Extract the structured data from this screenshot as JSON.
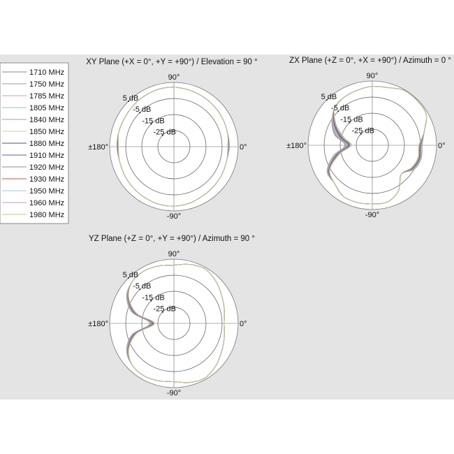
{
  "chart_data": {
    "type": "polar-line",
    "radial_unit": "dB",
    "radial_range": [
      -35,
      5
    ],
    "ring_labels": [
      "5 dB",
      "-5 dB",
      "-15 dB",
      "-25 dB"
    ],
    "ring_values": [
      5,
      -5,
      -15,
      -25
    ],
    "angle_labels": {
      "top": "90°",
      "left": "±180°",
      "right": "0°",
      "bottom": "-90°"
    },
    "legend": {
      "placement": "left",
      "entries": [
        {
          "name": "1710 MHz",
          "color": "#7b86b8"
        },
        {
          "name": "1750 MHz",
          "color": "#9a9a9a"
        },
        {
          "name": "1785 MHz",
          "color": "#e09aa4"
        },
        {
          "name": "1805 MHz",
          "color": "#86c4de"
        },
        {
          "name": "1840 MHz",
          "color": "#c08cb0"
        },
        {
          "name": "1850 MHz",
          "color": "#d6cc98"
        },
        {
          "name": "1880 MHz",
          "color": "#555555"
        },
        {
          "name": "1910 MHz",
          "color": "#5e5ea0"
        },
        {
          "name": "1920 MHz",
          "color": "#7e947e"
        },
        {
          "name": "1930 MHz",
          "color": "#b05858"
        },
        {
          "name": "1950 MHz",
          "color": "#9cc6d8"
        },
        {
          "name": "1960 MHz",
          "color": "#bc9cc6"
        },
        {
          "name": "1980 MHz",
          "color": "#c4c488"
        }
      ]
    },
    "angles_deg": [
      0,
      15,
      30,
      45,
      60,
      75,
      90,
      105,
      120,
      135,
      150,
      165,
      180,
      195,
      210,
      225,
      240,
      255,
      270,
      285,
      300,
      315,
      330,
      345
    ],
    "plots": [
      {
        "title": "XY Plane (+X = 0°, +Y = +90°) / Elevation = 90 °",
        "series": [
          [
            -0.5,
            -0.5,
            0,
            0.5,
            1,
            1.5,
            2,
            2,
            1.5,
            1,
            0.5,
            0.5,
            0.5,
            0,
            0.5,
            1,
            1.5,
            2,
            2,
            1.5,
            0.5,
            0,
            -0.5,
            -1
          ],
          [
            -0.6,
            -0.5,
            0,
            0.5,
            1,
            1.5,
            2,
            2,
            1.5,
            1,
            0.5,
            0.5,
            0.4,
            0,
            0.5,
            1,
            1.5,
            2,
            2,
            1.5,
            0.5,
            0,
            -0.5,
            -1
          ],
          [
            -0.7,
            -0.5,
            0,
            0.5,
            1,
            1.5,
            2,
            2,
            1.5,
            1,
            0.5,
            0.5,
            0.3,
            0,
            0.5,
            1,
            1.5,
            2,
            2,
            1.5,
            0.5,
            0,
            -0.5,
            -1
          ],
          [
            -0.8,
            -0.5,
            0,
            0.5,
            1,
            1.5,
            2,
            2,
            1.5,
            1,
            0.5,
            0.5,
            0.2,
            0,
            0.5,
            1,
            1.5,
            2,
            2,
            1.5,
            0.5,
            0,
            -0.5,
            -1
          ],
          [
            -0.8,
            -0.5,
            0,
            0.5,
            1,
            1.5,
            2,
            2,
            1.5,
            1,
            0.5,
            0.5,
            0.2,
            0,
            0.5,
            1,
            1.5,
            2,
            2,
            1.5,
            0.5,
            0,
            -0.5,
            -1
          ],
          [
            -0.9,
            -0.5,
            0,
            0.5,
            1,
            1.5,
            2,
            2,
            1.5,
            1,
            0.5,
            0.5,
            0.1,
            0,
            0.5,
            1,
            1.5,
            2,
            2,
            1.5,
            0.5,
            0,
            -0.5,
            -1
          ],
          [
            -1,
            -0.5,
            0,
            0.5,
            1,
            1.5,
            2,
            2,
            1.5,
            1,
            0.5,
            0.5,
            0,
            0,
            0.5,
            1,
            1.5,
            2,
            2,
            1.5,
            0.5,
            0,
            -0.5,
            -1
          ],
          [
            -1.1,
            -0.5,
            0,
            0.5,
            1,
            1.5,
            2,
            2,
            1.5,
            1,
            0.5,
            0.5,
            -0.1,
            0,
            0.5,
            1,
            1.5,
            2,
            2,
            1.5,
            0.5,
            0,
            -0.5,
            -1
          ],
          [
            -1.2,
            -0.5,
            0,
            0.5,
            1,
            1.5,
            2,
            2,
            1.5,
            1,
            0.5,
            0.5,
            -0.2,
            0,
            0.5,
            1,
            1.5,
            2,
            2,
            1.5,
            0.5,
            0,
            -0.5,
            -1
          ],
          [
            -1.3,
            -0.5,
            0,
            0.5,
            1,
            1.5,
            2,
            2,
            1.5,
            1,
            0.5,
            0.5,
            -0.3,
            0,
            0.5,
            1,
            1.5,
            2,
            2,
            1.5,
            0.5,
            0,
            -0.5,
            -1
          ],
          [
            -1.3,
            -0.5,
            0,
            0.5,
            1,
            1.5,
            2,
            2,
            1.5,
            1,
            0.5,
            0.5,
            -0.3,
            0,
            0.5,
            1,
            1.5,
            2,
            2,
            1.5,
            0.5,
            0,
            -0.5,
            -1
          ],
          [
            -1.4,
            -0.5,
            0,
            0.5,
            1,
            1.5,
            2,
            2,
            1.5,
            1,
            0.5,
            0.5,
            -0.4,
            0,
            0.5,
            1,
            1.5,
            2,
            2,
            1.5,
            0.5,
            0,
            -0.5,
            -1
          ],
          [
            -1.5,
            -0.5,
            0,
            0.5,
            1,
            1.5,
            2,
            2,
            1.5,
            1,
            0.5,
            0.5,
            -0.5,
            0,
            0.5,
            1,
            1.5,
            2,
            2,
            1.5,
            0.5,
            0,
            -0.5,
            -1
          ]
        ]
      },
      {
        "title": "ZX Plane (+Z = 0°, +X = +90°) / Azimuth = 0 °",
        "series": [
          [
            -4,
            -1.5,
            3.7,
            4.4,
            4.5,
            2.2,
            1.7,
            0.5,
            -0.3,
            -2,
            -6,
            -11,
            -18,
            -10,
            -2.5,
            -1.6,
            1.5,
            1.8,
            1.5,
            1.5,
            -2.3,
            -9.5,
            -5,
            -3.5
          ],
          [
            -4.2,
            -1.5,
            3.7,
            4.4,
            4.5,
            2.2,
            1.7,
            0.5,
            -0.3,
            -2,
            -6.2,
            -11.5,
            -18.3,
            -10.3,
            -2.7,
            -1.6,
            1.5,
            1.8,
            1.5,
            1.5,
            -2.3,
            -9.5,
            -5.2,
            -3.7
          ],
          [
            -4.3,
            -1.5,
            3.7,
            4.4,
            4.5,
            2.2,
            1.7,
            0.5,
            -0.3,
            -2,
            -6.5,
            -12,
            -18.7,
            -10.7,
            -2.8,
            -1.6,
            1.5,
            1.8,
            1.5,
            1.5,
            -2.3,
            -9.5,
            -5.3,
            -3.8
          ],
          [
            -4.5,
            -1.5,
            3.7,
            4.4,
            4.5,
            2.2,
            1.7,
            0.5,
            -0.3,
            -2,
            -6.8,
            -12.5,
            -19,
            -11,
            -3,
            -1.6,
            1.5,
            1.8,
            1.5,
            1.5,
            -2.3,
            -9.5,
            -5.5,
            -4
          ],
          [
            -4.7,
            -1.5,
            3.7,
            4.4,
            4.5,
            2.2,
            1.7,
            0.5,
            -0.3,
            -2,
            -7,
            -13,
            -19.3,
            -11.3,
            -3.2,
            -1.6,
            1.5,
            1.8,
            1.5,
            1.5,
            -2.3,
            -9.5,
            -5.7,
            -4.2
          ],
          [
            -4.8,
            -1.5,
            3.7,
            4.4,
            4.5,
            2.2,
            1.7,
            0.5,
            -0.3,
            -2,
            -7.3,
            -13.5,
            -19.7,
            -11.7,
            -3.3,
            -1.6,
            1.5,
            1.8,
            1.5,
            1.5,
            -2.3,
            -9.5,
            -5.8,
            -4.3
          ],
          [
            -5,
            -1.5,
            3.7,
            4.4,
            4.5,
            2.2,
            1.7,
            0.5,
            -0.3,
            -2,
            -7.5,
            -14,
            -20,
            -12,
            -3.5,
            -1.6,
            1.5,
            1.8,
            1.5,
            1.5,
            -2.3,
            -9.5,
            -6,
            -4.5
          ],
          [
            -5.2,
            -1.5,
            3.7,
            4.4,
            4.5,
            2.2,
            1.7,
            0.5,
            -0.3,
            -2,
            -7.8,
            -14.5,
            -20.3,
            -12.3,
            -3.7,
            -1.6,
            1.5,
            1.8,
            1.5,
            1.5,
            -2.3,
            -9.5,
            -6.2,
            -4.7
          ],
          [
            -5.3,
            -1.5,
            3.7,
            4.4,
            4.5,
            2.2,
            1.7,
            0.5,
            -0.3,
            -2,
            -8,
            -15,
            -20.7,
            -12.7,
            -3.8,
            -1.6,
            1.5,
            1.8,
            1.5,
            1.5,
            -2.3,
            -9.5,
            -6.3,
            -4.8
          ],
          [
            -5.5,
            -1.5,
            3.7,
            4.4,
            4.5,
            2.2,
            1.7,
            0.5,
            -0.3,
            -2,
            -8.3,
            -15.5,
            -21,
            -13,
            -4,
            -1.6,
            1.5,
            1.8,
            1.5,
            1.5,
            -2.3,
            -9.5,
            -6.5,
            -5
          ],
          [
            -5.7,
            -1.5,
            3.7,
            4.4,
            4.5,
            2.2,
            1.7,
            0.5,
            -0.3,
            -2,
            -8.5,
            -16,
            -21.3,
            -13.3,
            -4.2,
            -1.6,
            1.5,
            1.8,
            1.5,
            1.5,
            -2.3,
            -9.5,
            -6.7,
            -5.2
          ],
          [
            -5.8,
            -1.5,
            3.7,
            4.4,
            4.5,
            2.2,
            1.7,
            0.5,
            -0.3,
            -2,
            -8.8,
            -16.5,
            -21.7,
            -13.7,
            -4.3,
            -1.6,
            1.5,
            1.8,
            1.5,
            1.5,
            -2.3,
            -9.5,
            -6.8,
            -5.3
          ],
          [
            -6,
            -1.5,
            3.7,
            4.4,
            4.5,
            2.2,
            1.7,
            0.5,
            -0.3,
            -2,
            -9,
            -17,
            -22,
            -14,
            -4.5,
            -1.6,
            1.5,
            1.8,
            1.5,
            1.5,
            -2.3,
            -9.5,
            -7,
            -5.5
          ]
        ]
      },
      {
        "title": "YZ Plane (+Z = 0°, +Y = +90°) / Azimuth = 90 °",
        "series": [
          [
            -3.7,
            -2.5,
            -0.6,
            2,
            4,
            3,
            1.3,
            2,
            2.6,
            1.7,
            -1,
            -8,
            -20,
            -8,
            -1,
            1.7,
            2.6,
            2,
            1.3,
            3,
            4,
            2,
            -0.6,
            -2.5
          ],
          [
            -3.7,
            -2.5,
            -0.6,
            2,
            4,
            3,
            1.3,
            2,
            2.6,
            1.7,
            -1.1,
            -8.2,
            -20.2,
            -8.2,
            -1.1,
            1.7,
            2.6,
            2,
            1.3,
            3,
            4,
            2,
            -0.6,
            -2.5
          ],
          [
            -3.7,
            -2.5,
            -0.6,
            2,
            4,
            3,
            1.3,
            2,
            2.6,
            1.7,
            -1.3,
            -8.5,
            -20.5,
            -8.5,
            -1.3,
            1.7,
            2.6,
            2,
            1.3,
            3,
            4,
            2,
            -0.6,
            -2.5
          ],
          [
            -3.7,
            -2.5,
            -0.6,
            2,
            4,
            3,
            1.3,
            2,
            2.6,
            1.7,
            -1.4,
            -8.8,
            -20.8,
            -8.8,
            -1.4,
            1.7,
            2.6,
            2,
            1.3,
            3,
            4,
            2,
            -0.6,
            -2.5
          ],
          [
            -3.7,
            -2.5,
            -0.6,
            2,
            4,
            3,
            1.3,
            2,
            2.6,
            1.7,
            -1.5,
            -9,
            -21,
            -9,
            -1.5,
            1.7,
            2.6,
            2,
            1.3,
            3,
            4,
            2,
            -0.6,
            -2.5
          ],
          [
            -3.7,
            -2.5,
            -0.6,
            2,
            4,
            3,
            1.3,
            2,
            2.6,
            1.7,
            -1.6,
            -9.3,
            -21.3,
            -9.3,
            -1.6,
            1.7,
            2.6,
            2,
            1.3,
            3,
            4,
            2,
            -0.6,
            -2.5
          ],
          [
            -3.7,
            -2.5,
            -0.6,
            2,
            4,
            3,
            1.3,
            2,
            2.6,
            1.7,
            -1.8,
            -9.5,
            -21.5,
            -9.5,
            -1.8,
            1.7,
            2.6,
            2,
            1.3,
            3,
            4,
            2,
            -0.6,
            -2.5
          ],
          [
            -3.7,
            -2.5,
            -0.6,
            2,
            4,
            3,
            1.3,
            2,
            2.6,
            1.7,
            -1.9,
            -9.8,
            -21.8,
            -9.8,
            -1.9,
            1.7,
            2.6,
            2,
            1.3,
            3,
            4,
            2,
            -0.6,
            -2.5
          ],
          [
            -3.7,
            -2.5,
            -0.6,
            2,
            4,
            3,
            1.3,
            2,
            2.6,
            1.7,
            -2,
            -10,
            -22,
            -10,
            -2,
            1.7,
            2.6,
            2,
            1.3,
            3,
            4,
            2,
            -0.6,
            -2.5
          ],
          [
            -3.7,
            -2.5,
            -0.6,
            2,
            4,
            3,
            1.3,
            2,
            2.6,
            1.7,
            -2.1,
            -10.3,
            -22.3,
            -10.3,
            -2.1,
            1.7,
            2.6,
            2,
            1.3,
            3,
            4,
            2,
            -0.6,
            -2.5
          ],
          [
            -3.7,
            -2.5,
            -0.6,
            2,
            4,
            3,
            1.3,
            2,
            2.6,
            1.7,
            -2.3,
            -10.5,
            -22.5,
            -10.5,
            -2.3,
            1.7,
            2.6,
            2,
            1.3,
            3,
            4,
            2,
            -0.6,
            -2.5
          ],
          [
            -3.7,
            -2.5,
            -0.6,
            2,
            4,
            3,
            1.3,
            2,
            2.6,
            1.7,
            -2.4,
            -10.8,
            -22.8,
            -10.8,
            -2.4,
            1.7,
            2.6,
            2,
            1.3,
            3,
            4,
            2,
            -0.6,
            -2.5
          ],
          [
            -3.7,
            -2.5,
            -0.6,
            2,
            4,
            3,
            1.3,
            2,
            2.6,
            1.7,
            -2.5,
            -11,
            -23,
            -11,
            -2.5,
            1.7,
            2.6,
            2,
            1.3,
            3,
            4,
            2,
            -0.6,
            -2.5
          ]
        ]
      }
    ]
  }
}
